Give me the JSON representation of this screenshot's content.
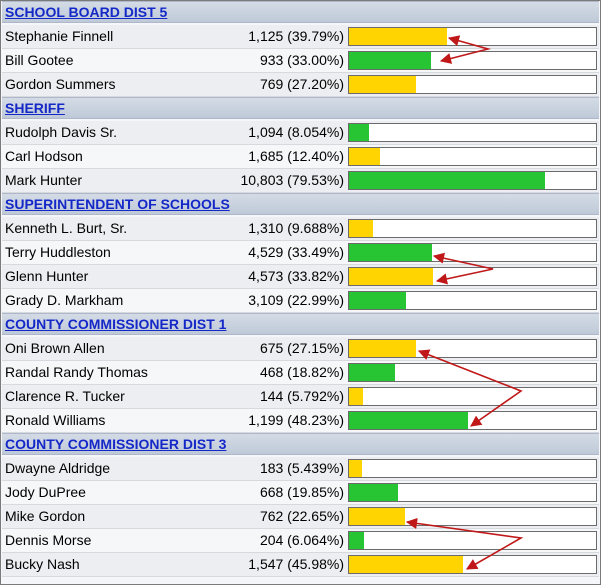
{
  "colors": {
    "yellow": "#ffd400",
    "green": "#27c434",
    "arrow": "#c01818",
    "header_link": "#1428c8"
  },
  "races": [
    {
      "title": "SCHOOL BOARD DIST 5",
      "candidates": [
        {
          "name": "Stephanie Finnell",
          "votes": "1,125 (39.79%)",
          "pct": 39.79,
          "color": "yellow"
        },
        {
          "name": "Bill Gootee",
          "votes": "933 (33.00%)",
          "pct": 33.0,
          "color": "green"
        },
        {
          "name": "Gordon Summers",
          "votes": "769 (27.20%)",
          "pct": 27.2,
          "color": "yellow"
        }
      ]
    },
    {
      "title": "SHERIFF",
      "candidates": [
        {
          "name": "Rudolph Davis Sr.",
          "votes": "1,094 (8.054%)",
          "pct": 8.054,
          "color": "green"
        },
        {
          "name": "Carl Hodson",
          "votes": "1,685 (12.40%)",
          "pct": 12.4,
          "color": "yellow"
        },
        {
          "name": "Mark Hunter",
          "votes": "10,803 (79.53%)",
          "pct": 79.53,
          "color": "green"
        }
      ]
    },
    {
      "title": "SUPERINTENDENT OF SCHOOLS",
      "candidates": [
        {
          "name": "Kenneth L. Burt, Sr.",
          "votes": "1,310 (9.688%)",
          "pct": 9.688,
          "color": "yellow"
        },
        {
          "name": "Terry Huddleston",
          "votes": "4,529 (33.49%)",
          "pct": 33.49,
          "color": "green"
        },
        {
          "name": "Glenn Hunter",
          "votes": "4,573 (33.82%)",
          "pct": 33.82,
          "color": "yellow"
        },
        {
          "name": "Grady D. Markham",
          "votes": "3,109 (22.99%)",
          "pct": 22.99,
          "color": "green"
        }
      ]
    },
    {
      "title": "COUNTY COMMISSIONER DIST 1",
      "candidates": [
        {
          "name": "Oni Brown Allen",
          "votes": "675 (27.15%)",
          "pct": 27.15,
          "color": "yellow"
        },
        {
          "name": "Randal Randy Thomas",
          "votes": "468 (18.82%)",
          "pct": 18.82,
          "color": "green"
        },
        {
          "name": "Clarence R. Tucker",
          "votes": "144 (5.792%)",
          "pct": 5.792,
          "color": "yellow"
        },
        {
          "name": "Ronald Williams",
          "votes": "1,199 (48.23%)",
          "pct": 48.23,
          "color": "green"
        }
      ]
    },
    {
      "title": "COUNTY COMMISSIONER DIST 3",
      "candidates": [
        {
          "name": "Dwayne Aldridge",
          "votes": "183 (5.439%)",
          "pct": 5.439,
          "color": "yellow"
        },
        {
          "name": "Jody DuPree",
          "votes": "668 (19.85%)",
          "pct": 19.85,
          "color": "green"
        },
        {
          "name": "Mike Gordon",
          "votes": "762 (22.65%)",
          "pct": 22.65,
          "color": "yellow"
        },
        {
          "name": "Dennis Morse",
          "votes": "204 (6.064%)",
          "pct": 6.064,
          "color": "green"
        },
        {
          "name": "Bucky Nash",
          "votes": "1,547 (45.98%)",
          "pct": 45.98,
          "color": "yellow"
        }
      ]
    }
  ]
}
